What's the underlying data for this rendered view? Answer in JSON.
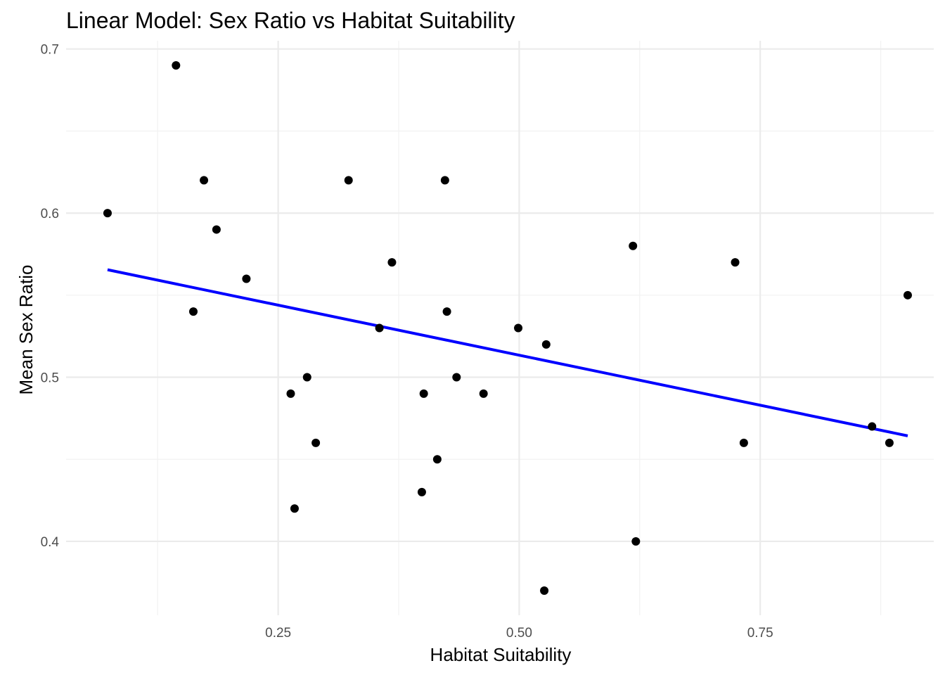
{
  "chart_data": {
    "type": "scatter",
    "title": "Linear Model: Sex Ratio vs Habitat Suitability",
    "xlabel": "Habitat Suitability",
    "ylabel": "Mean Sex Ratio",
    "xlim": [
      0.03,
      0.93
    ],
    "ylim": [
      0.355,
      0.705
    ],
    "x_ticks": [
      0.25,
      0.5,
      0.75
    ],
    "x_tick_labels": [
      "0.25",
      "0.50",
      "0.75"
    ],
    "x_minor_ticks": [
      0.125,
      0.375,
      0.625,
      0.875
    ],
    "y_ticks": [
      0.4,
      0.5,
      0.6,
      0.7
    ],
    "y_tick_labels": [
      "0.4",
      "0.5",
      "0.6",
      "0.7"
    ],
    "y_minor_ticks": [
      0.45,
      0.55,
      0.65
    ],
    "grid": true,
    "point_color": "#000000",
    "fit_line_color": "#0000ff",
    "points": [
      {
        "x": 0.073,
        "y": 0.6
      },
      {
        "x": 0.144,
        "y": 0.69
      },
      {
        "x": 0.173,
        "y": 0.62
      },
      {
        "x": 0.162,
        "y": 0.54
      },
      {
        "x": 0.186,
        "y": 0.59
      },
      {
        "x": 0.217,
        "y": 0.56
      },
      {
        "x": 0.263,
        "y": 0.49
      },
      {
        "x": 0.267,
        "y": 0.42
      },
      {
        "x": 0.28,
        "y": 0.5
      },
      {
        "x": 0.289,
        "y": 0.46
      },
      {
        "x": 0.323,
        "y": 0.62
      },
      {
        "x": 0.355,
        "y": 0.53
      },
      {
        "x": 0.368,
        "y": 0.57
      },
      {
        "x": 0.399,
        "y": 0.43
      },
      {
        "x": 0.401,
        "y": 0.49
      },
      {
        "x": 0.415,
        "y": 0.45
      },
      {
        "x": 0.423,
        "y": 0.62
      },
      {
        "x": 0.425,
        "y": 0.54
      },
      {
        "x": 0.435,
        "y": 0.5
      },
      {
        "x": 0.463,
        "y": 0.49
      },
      {
        "x": 0.499,
        "y": 0.53
      },
      {
        "x": 0.526,
        "y": 0.37
      },
      {
        "x": 0.528,
        "y": 0.52
      },
      {
        "x": 0.618,
        "y": 0.58
      },
      {
        "x": 0.621,
        "y": 0.4
      },
      {
        "x": 0.724,
        "y": 0.57
      },
      {
        "x": 0.733,
        "y": 0.46
      },
      {
        "x": 0.866,
        "y": 0.47
      },
      {
        "x": 0.884,
        "y": 0.46
      },
      {
        "x": 0.903,
        "y": 0.55
      }
    ],
    "fit_line": {
      "x": [
        0.073,
        0.903
      ],
      "y": [
        0.5655,
        0.4643
      ]
    }
  }
}
